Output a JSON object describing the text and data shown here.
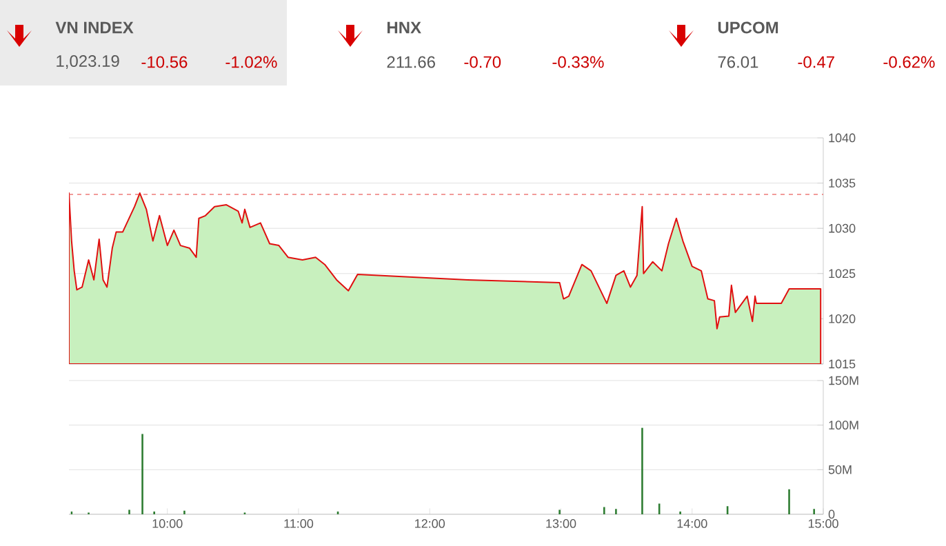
{
  "chart_data": [
    {
      "type": "other",
      "annotations": [
        "VN INDEX",
        "1,023.19",
        "-10.56",
        "-1.02%",
        "HNX",
        "211.66",
        "-0.70",
        "-0.33%",
        "UPCOM",
        "76.01",
        "-0.47",
        "-0.62%"
      ]
    },
    {
      "type": "area",
      "color": "#c8f0be",
      "x": [
        9.25,
        9.27,
        9.29,
        9.31,
        9.35,
        9.4,
        9.44,
        9.48,
        9.51,
        9.54,
        9.58,
        9.61,
        9.66,
        9.75,
        9.79,
        9.84,
        9.89,
        9.94,
        10.0,
        10.05,
        10.1,
        10.17,
        10.22,
        10.24,
        10.29,
        10.36,
        10.45,
        10.54,
        10.57,
        10.59,
        10.63,
        10.71,
        10.78,
        10.85,
        10.92,
        11.03,
        11.13,
        11.2,
        11.29,
        11.38,
        11.45,
        12.29,
        12.99,
        13.02,
        13.06,
        13.16,
        13.23,
        13.35,
        13.42,
        13.48,
        13.53,
        13.58,
        13.62,
        13.63,
        13.7,
        13.77,
        13.82,
        13.88,
        13.93,
        14.0,
        14.07,
        14.12,
        14.17,
        14.19,
        14.21,
        14.28,
        14.3,
        14.33,
        14.42,
        14.46,
        14.48,
        14.49,
        14.68,
        14.74,
        14.98
      ],
      "values": [
        1033.9,
        1028.6,
        1025.3,
        1023.2,
        1023.5,
        1026.5,
        1024.3,
        1028.8,
        1024.3,
        1023.5,
        1027.8,
        1029.6,
        1029.6,
        1032.4,
        1033.9,
        1032.1,
        1028.6,
        1031.4,
        1028.1,
        1029.8,
        1028.1,
        1027.8,
        1026.8,
        1031.1,
        1031.4,
        1032.4,
        1032.6,
        1031.9,
        1030.6,
        1032.1,
        1030.1,
        1030.6,
        1028.3,
        1028.1,
        1026.8,
        1026.5,
        1026.8,
        1026.0,
        1024.3,
        1023.1,
        1024.9,
        1024.3,
        1024.0,
        1022.2,
        1022.5,
        1026.0,
        1025.3,
        1021.7,
        1024.8,
        1025.3,
        1023.5,
        1024.8,
        1032.4,
        1025.0,
        1026.3,
        1025.3,
        1028.3,
        1031.1,
        1028.6,
        1025.8,
        1025.3,
        1022.2,
        1022.0,
        1018.9,
        1020.2,
        1020.3,
        1023.7,
        1020.7,
        1022.5,
        1019.7,
        1022.5,
        1021.7,
        1021.7,
        1023.3,
        1023.3
      ],
      "xlim": [
        9.25,
        15
      ],
      "ylim": [
        1015,
        1040
      ],
      "yticks": [
        1015,
        1020,
        1025,
        1030,
        1035,
        1040
      ],
      "grid": "y",
      "tick_labels": "y",
      "ref_lines": [
        {
          "axis": "y",
          "value": 1033.75,
          "color": "#e53935",
          "line_style": "dashed"
        }
      ]
    },
    {
      "type": "bar",
      "color": "#2e7d32",
      "x": [
        9.27,
        9.4,
        9.71,
        9.81,
        9.9,
        10.13,
        10.59,
        11.3,
        12.99,
        13.33,
        13.42,
        13.62,
        13.75,
        13.91,
        14.27,
        14.74,
        14.93
      ],
      "values": [
        3,
        2,
        5,
        90,
        3,
        4,
        2,
        3,
        5,
        8,
        6,
        97,
        12,
        3,
        9,
        28,
        6
      ],
      "xlim": [
        9.25,
        15
      ],
      "xticks": [
        {
          "value": 10,
          "label": "10:00"
        },
        {
          "value": 11,
          "label": "11:00"
        },
        {
          "value": 12,
          "label": "12:00"
        },
        {
          "value": 13,
          "label": "13:00"
        },
        {
          "value": 14,
          "label": "14:00"
        },
        {
          "value": 15,
          "label": "15:00"
        }
      ],
      "ylim": [
        0,
        150
      ],
      "yticks": [
        0,
        {
          "value": 50,
          "label": "50M"
        },
        {
          "value": 100,
          "label": "100M"
        },
        {
          "value": 150,
          "label": "150M"
        }
      ],
      "grid": "y"
    }
  ]
}
